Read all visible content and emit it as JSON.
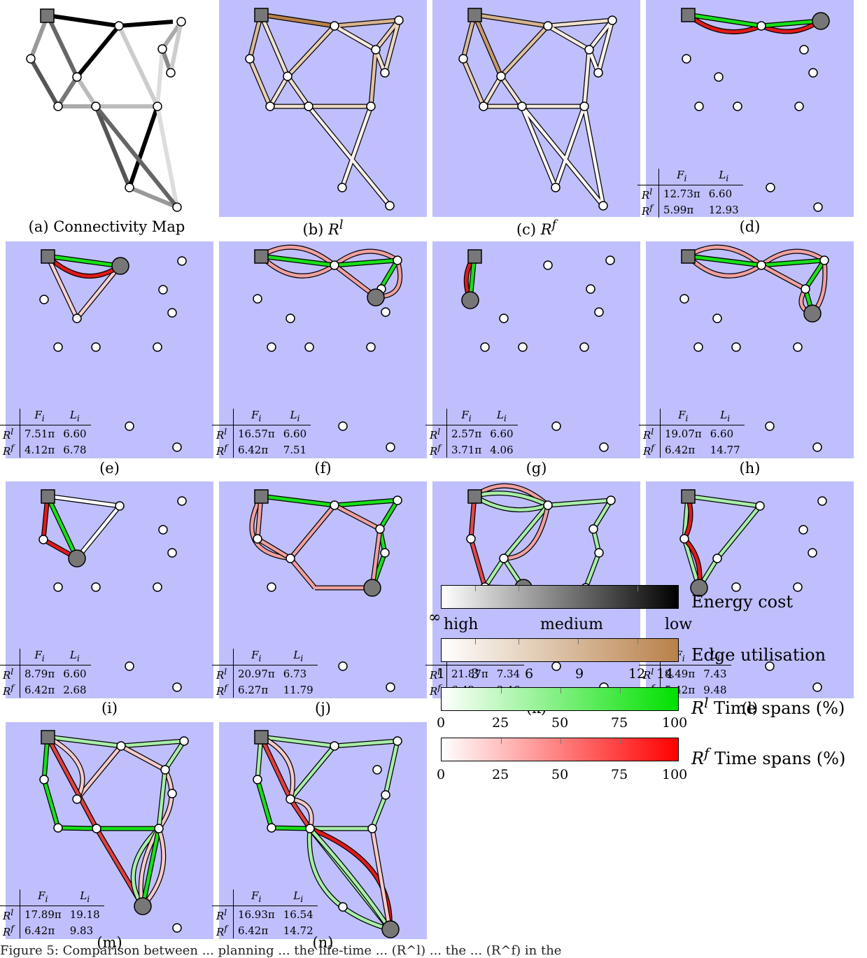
{
  "colors": {
    "panel_bg": "#bfbffd",
    "node_fill": "#ffffff",
    "special_node": "#777777",
    "green": "#18e018",
    "red": "#e01a1a",
    "light_red": "#f0a0a0",
    "light_green": "#a8eea8",
    "brown": "#b8814a"
  },
  "panels": [
    {
      "id": "a",
      "caption": "(a) Connectivity Map"
    },
    {
      "id": "b",
      "caption_prefix": "(b) ",
      "caption_sym": "R",
      "caption_sup": "l"
    },
    {
      "id": "c",
      "caption_prefix": "(c) ",
      "caption_sym": "R",
      "caption_sup": "f"
    },
    {
      "id": "d",
      "caption": "(d)",
      "stats": {
        "fl": "12.73π",
        "ll": "6.60",
        "ff": "5.99π",
        "lf": "12.93"
      }
    },
    {
      "id": "e",
      "caption": "(e)",
      "stats": {
        "fl": "7.51π",
        "ll": "6.60",
        "ff": "4.12π",
        "lf": "6.78"
      }
    },
    {
      "id": "f",
      "caption": "(f)",
      "stats": {
        "fl": "16.57π",
        "ll": "6.60",
        "ff": "6.42π",
        "lf": "7.51"
      }
    },
    {
      "id": "g",
      "caption": "(g)",
      "stats": {
        "fl": "2.57π",
        "ll": "6.60",
        "ff": "3.71π",
        "lf": "4.06"
      }
    },
    {
      "id": "h",
      "caption": "(h)",
      "stats": {
        "fl": "19.07π",
        "ll": "6.60",
        "ff": "6.42π",
        "lf": "14.77"
      }
    },
    {
      "id": "i",
      "caption": "(i)",
      "stats": {
        "fl": "8.79π",
        "ll": "6.60",
        "ff": "6.42π",
        "lf": "2.68"
      }
    },
    {
      "id": "j",
      "caption": "(j)",
      "stats": {
        "fl": "20.97π",
        "ll": "6.73",
        "ff": "6.27π",
        "lf": "11.79"
      }
    },
    {
      "id": "k",
      "caption": "(k)",
      "stats": {
        "fl": "21.87π",
        "ll": "7.34",
        "ff": "6.42π",
        "lf": "3.46"
      }
    },
    {
      "id": "l",
      "caption": "(l)",
      "stats": {
        "fl": "9.49π",
        "ll": "7.43",
        "ff": "5.42π",
        "lf": "9.48"
      }
    },
    {
      "id": "m",
      "caption": "(m)",
      "stats": {
        "fl": "17.89π",
        "ll": "19.18",
        "ff": "6.42π",
        "lf": "9.83"
      }
    },
    {
      "id": "n",
      "caption": "(n)",
      "stats": {
        "fl": "16.93π",
        "ll": "16.54",
        "ff": "6.42π",
        "lf": "14.72"
      }
    }
  ],
  "stats_header": {
    "f": "F",
    "f_sub": "i",
    "l": "L",
    "l_sub": "i",
    "rl_sym": "R",
    "rl_sup": "l",
    "rf_sym": "R",
    "rf_sup": "f"
  },
  "legend": {
    "energy": {
      "label": "Energy cost",
      "ticks": [
        "∞",
        "high",
        "medium",
        "low"
      ]
    },
    "utilisation": {
      "label": "Edge utilisation",
      "ticks": [
        "1",
        "3",
        "6",
        "9",
        "12",
        "14"
      ]
    },
    "rl_spans": {
      "label_sym": "R",
      "label_sup": "l",
      "label": " Time spans (%)",
      "ticks": [
        "0",
        "25",
        "50",
        "75",
        "100"
      ]
    },
    "rf_spans": {
      "label_sym": "R",
      "label_sup": "f",
      "label": " Time spans (%)",
      "ticks": [
        "0",
        "25",
        "50",
        "75",
        "100"
      ]
    }
  },
  "footer": "Figure 5: Comparison between ... planning ... the life-time ... (R^l) ... the ... (R^f) in the"
}
